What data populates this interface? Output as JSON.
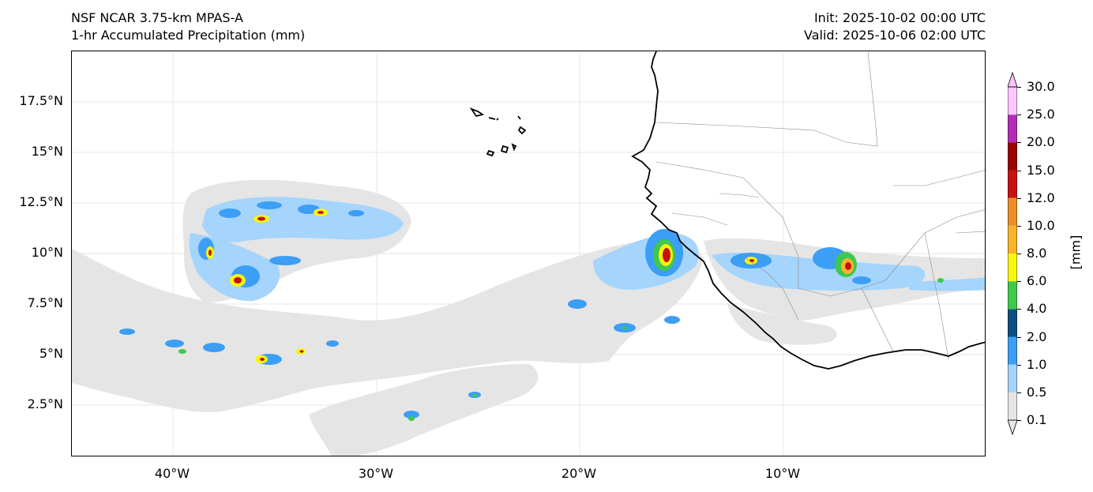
{
  "header": {
    "model": "NSF NCAR 3.75-km MPAS-A",
    "field": "1-hr Accumulated Precipitation (mm)",
    "init": "Init: 2025-10-02 00:00 UTC",
    "valid": "Valid: 2025-10-06 02:00 UTC"
  },
  "axes": {
    "lat_ticks": [
      "17.5°N",
      "15°N",
      "12.5°N",
      "10°N",
      "7.5°N",
      "5°N",
      "2.5°N"
    ],
    "lon_ticks": [
      "40°W",
      "30°W",
      "20°W",
      "10°W"
    ]
  },
  "colorbar": {
    "units": "[mm]",
    "levels": [
      "0.1",
      "0.5",
      "1.0",
      "2.0",
      "4.0",
      "6.0",
      "8.0",
      "10.0",
      "12.0",
      "15.0",
      "20.0",
      "25.0",
      "30.0"
    ],
    "colors": [
      "#e5e5e5",
      "#a5d4fc",
      "#3c9ef5",
      "#0d4f80",
      "#3fc84d",
      "#fbf70a",
      "#f9b42c",
      "#eb8f26",
      "#c71212",
      "#9a0202",
      "#b12eb3",
      "#fdc7fd"
    ]
  }
}
